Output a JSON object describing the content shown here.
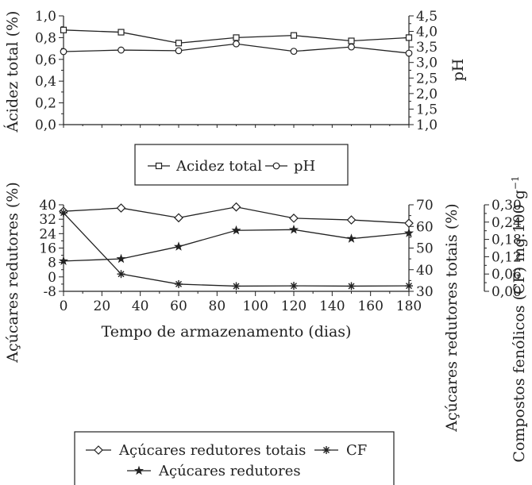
{
  "chart_data": [
    {
      "type": "line",
      "ylabel": "Ácidez total (%)",
      "y2label": "pH",
      "x": [
        0,
        30,
        60,
        90,
        120,
        150,
        180
      ],
      "xlim": [
        0,
        180
      ],
      "ylim": [
        0,
        1.0
      ],
      "y2lim": [
        1.0,
        4.5
      ],
      "yticks": [
        "0,0",
        "0,2",
        "0,4",
        "0,6",
        "0,8",
        "1,0"
      ],
      "y2ticks": [
        "1,0",
        "1,5",
        "2,0",
        "2,5",
        "3,0",
        "3,5",
        "4,0",
        "4,5"
      ],
      "series": [
        {
          "name": "Acidez total",
          "axis": "left",
          "marker": "square",
          "values": [
            0.87,
            0.85,
            0.75,
            0.8,
            0.82,
            0.77,
            0.8
          ]
        },
        {
          "name": "pH",
          "axis": "right",
          "marker": "circle",
          "values": [
            3.35,
            3.4,
            3.38,
            3.6,
            3.36,
            3.5,
            3.3
          ]
        }
      ],
      "legend": "below"
    },
    {
      "type": "line",
      "xlabel": "Tempo de armazenamento (dias)",
      "ylabel": "Açúcares redutores (%)",
      "y2label": "Açúcares redutores totais (%)",
      "y3label": "Compostos fenólicos (CF) mg.100 g",
      "y3label_sup": "−1",
      "x": [
        0,
        30,
        60,
        90,
        120,
        150,
        180
      ],
      "xticks": [
        "0",
        "20",
        "40",
        "60",
        "80",
        "100",
        "120",
        "140",
        "160",
        "180"
      ],
      "xlim": [
        0,
        180
      ],
      "ylim": [
        -8,
        40
      ],
      "y2lim": [
        30,
        70
      ],
      "y3lim": [
        0.0,
        0.3
      ],
      "yticks": [
        "-8",
        "0",
        "8",
        "16",
        "24",
        "32",
        "40"
      ],
      "y2ticks": [
        "30",
        "40",
        "50",
        "60",
        "70"
      ],
      "y3ticks": [
        "0,00",
        "0,06",
        "0,12",
        "0,18",
        "0,24",
        "0,30"
      ],
      "series": [
        {
          "name": "Açúcares redutores totais",
          "axis": "right",
          "marker": "diamond",
          "values": [
            67.0,
            68.5,
            64.0,
            69.0,
            63.8,
            63.0,
            61.5
          ]
        },
        {
          "name": "CF",
          "axis": "right2",
          "marker": "asterisk",
          "values": [
            0.272,
            0.06,
            0.025,
            0.018,
            0.019,
            0.018,
            0.019
          ]
        },
        {
          "name": "Açúcares redutores",
          "axis": "left",
          "marker": "star",
          "values": [
            8.8,
            10.0,
            16.8,
            25.8,
            26.2,
            21.2,
            24.3
          ]
        }
      ],
      "legend": "below"
    }
  ]
}
